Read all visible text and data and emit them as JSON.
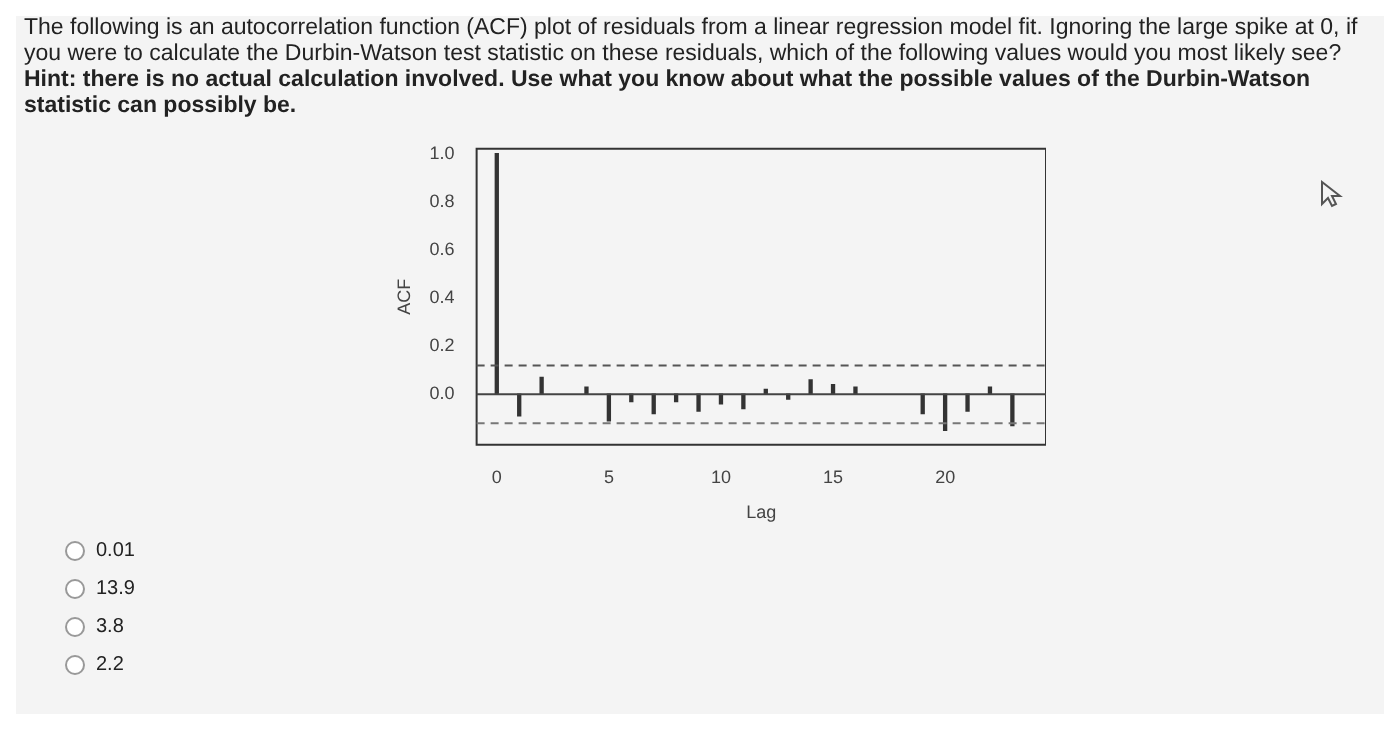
{
  "chart_data": {
    "type": "bar",
    "title": "The following is an autocorrelation function (ACF) plot of residuals from a linear regression model fit. Ignoring the large spike at 0, if you were to calculate the Durbin-Watson test statistic on these residuals, which of the following values would you most likely see?",
    "subtitle": "Hint: there is no actual calculation involved. Use what you know about what the possible values of the Durbin-Watson statistic can possibly be.",
    "xlabel": "Lag",
    "ylabel": "ACF",
    "x": [
      0,
      1,
      2,
      3,
      4,
      5,
      6,
      7,
      8,
      9,
      10,
      11,
      12,
      13,
      14,
      15,
      16,
      17,
      18,
      19,
      20,
      21,
      22,
      23
    ],
    "values": [
      1.0,
      -0.09,
      0.07,
      null,
      0.03,
      -0.11,
      -0.03,
      -0.08,
      -0.03,
      -0.07,
      -0.04,
      -0.06,
      0.02,
      -0.02,
      0.06,
      0.04,
      0.03,
      null,
      null,
      -0.08,
      -0.15,
      -0.07,
      0.03,
      -0.13
    ],
    "color": "#333333",
    "xlim": [
      -0.9,
      24.5
    ],
    "ylim": [
      -0.21,
      1.02
    ],
    "xticks": [
      0,
      5,
      10,
      15,
      20
    ],
    "yticks": [
      {
        "value": 0,
        "label": "0.0"
      },
      {
        "value": 0.2,
        "label": "0.2"
      },
      {
        "value": 0.4,
        "label": "0.4"
      },
      {
        "value": 0.6,
        "label": "0.6"
      },
      {
        "value": 0.8,
        "label": "0.8"
      },
      {
        "value": 1,
        "label": "1.0"
      }
    ],
    "ref_lines": [
      {
        "axis": "y",
        "value": 0,
        "color": "#444444",
        "line_style": "solid"
      },
      {
        "axis": "y",
        "value": 0.12,
        "color": "#555555",
        "line_style": "dashed"
      },
      {
        "axis": "y",
        "value": -0.12,
        "color": "#777777",
        "line_style": "dashed"
      }
    ],
    "annotations": [
      "0.01",
      "13.9",
      "3.8",
      "2.2"
    ]
  }
}
